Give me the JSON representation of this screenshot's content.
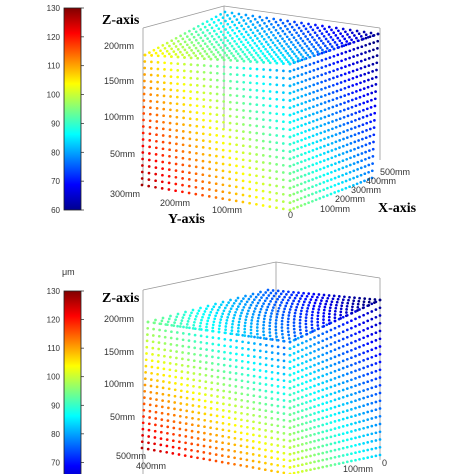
{
  "chart_data": [
    {
      "type": "scatter3d",
      "colorbar": {
        "unit": "",
        "range": [
          60,
          130
        ],
        "ticks": [
          {
            "value": 130,
            "label": "130"
          },
          {
            "value": 120,
            "label": "120"
          },
          {
            "value": 110,
            "label": "110"
          },
          {
            "value": 100,
            "label": "100"
          },
          {
            "value": 90,
            "label": "90"
          },
          {
            "value": 80,
            "label": "80"
          },
          {
            "value": 70,
            "label": "70"
          },
          {
            "value": 60,
            "label": "60"
          }
        ]
      },
      "axes": {
        "x": {
          "label": "X-axis",
          "range": [
            0,
            500
          ],
          "ticks": [
            "0",
            "100mm",
            "200mm",
            "300mm",
            "400mm",
            "500mm"
          ]
        },
        "y": {
          "label": "Y-axis",
          "range": [
            0,
            300
          ],
          "ticks": [
            "0",
            "100mm",
            "200mm",
            "300mm"
          ]
        },
        "z": {
          "label": "Z-axis",
          "range": [
            0,
            200
          ],
          "ticks": [
            "50mm",
            "100mm",
            "150mm",
            "200mm"
          ]
        }
      },
      "value_field": {
        "description_values": {
          "min": 62,
          "max": 130
        },
        "high_corner": "x=0, y=300, z=0",
        "low_corner": "x=500, y=0, z=200"
      },
      "grid": false
    },
    {
      "type": "scatter3d",
      "colorbar": {
        "unit": "μm",
        "range": [
          60,
          130
        ],
        "ticks": [
          {
            "value": 130,
            "label": "130"
          },
          {
            "value": 120,
            "label": "120"
          },
          {
            "value": 110,
            "label": "110"
          },
          {
            "value": 100,
            "label": "100"
          },
          {
            "value": 90,
            "label": "90"
          },
          {
            "value": 80,
            "label": "80"
          },
          {
            "value": 70,
            "label": "70"
          }
        ]
      },
      "axes": {
        "x": {
          "label": "",
          "range": [
            0,
            500
          ],
          "ticks": [
            "0",
            "100mm"
          ]
        },
        "y": {
          "label": "",
          "range": [
            0,
            500
          ],
          "ticks": [
            "400mm",
            "500mm"
          ]
        },
        "z": {
          "label": "Z-axis",
          "range": [
            0,
            200
          ],
          "ticks": [
            "50mm",
            "100mm",
            "150mm",
            "200mm"
          ]
        }
      },
      "value_field": {
        "description_values": {
          "min": 65,
          "max": 130
        },
        "high_corner": "front-left, bottom",
        "low_corner": "back-right, top"
      },
      "grid": false
    }
  ]
}
